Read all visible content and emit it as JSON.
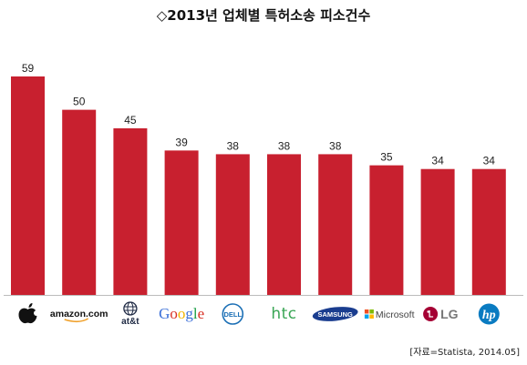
{
  "chart_data": {
    "type": "bar",
    "title": "◇2013년 업체별 특허소송 피소건수",
    "source": "[자료=Statista, 2014.05]",
    "categories": [
      "Apple",
      "amazon.com",
      "at&t",
      "Google",
      "DELL",
      "htc",
      "SAMSUNG",
      "Microsoft",
      "LG",
      "hp"
    ],
    "values": [
      59,
      50,
      45,
      39,
      38,
      38,
      38,
      35,
      34,
      34
    ],
    "xlabel": "",
    "ylabel": "",
    "ylim": [
      0,
      62
    ],
    "grid": false,
    "bar_color": "#c8202f"
  },
  "colors": {
    "apple": "#111111",
    "amazon_text": "#111111",
    "amazon_smile": "#f0a02a",
    "att": "#1f2a44",
    "google_blue": "#3a6fd8",
    "google_red": "#d93025",
    "google_yellow": "#f4b400",
    "google_green": "#1a9e45",
    "dell": "#1b6fb5",
    "htc": "#3aa655",
    "samsung": "#1a3d8f",
    "ms_red": "#f25022",
    "ms_green": "#7fba00",
    "ms_blue": "#00a4ef",
    "ms_yellow": "#ffb900",
    "lg": "#a50034",
    "hp": "#0a7bc1"
  }
}
